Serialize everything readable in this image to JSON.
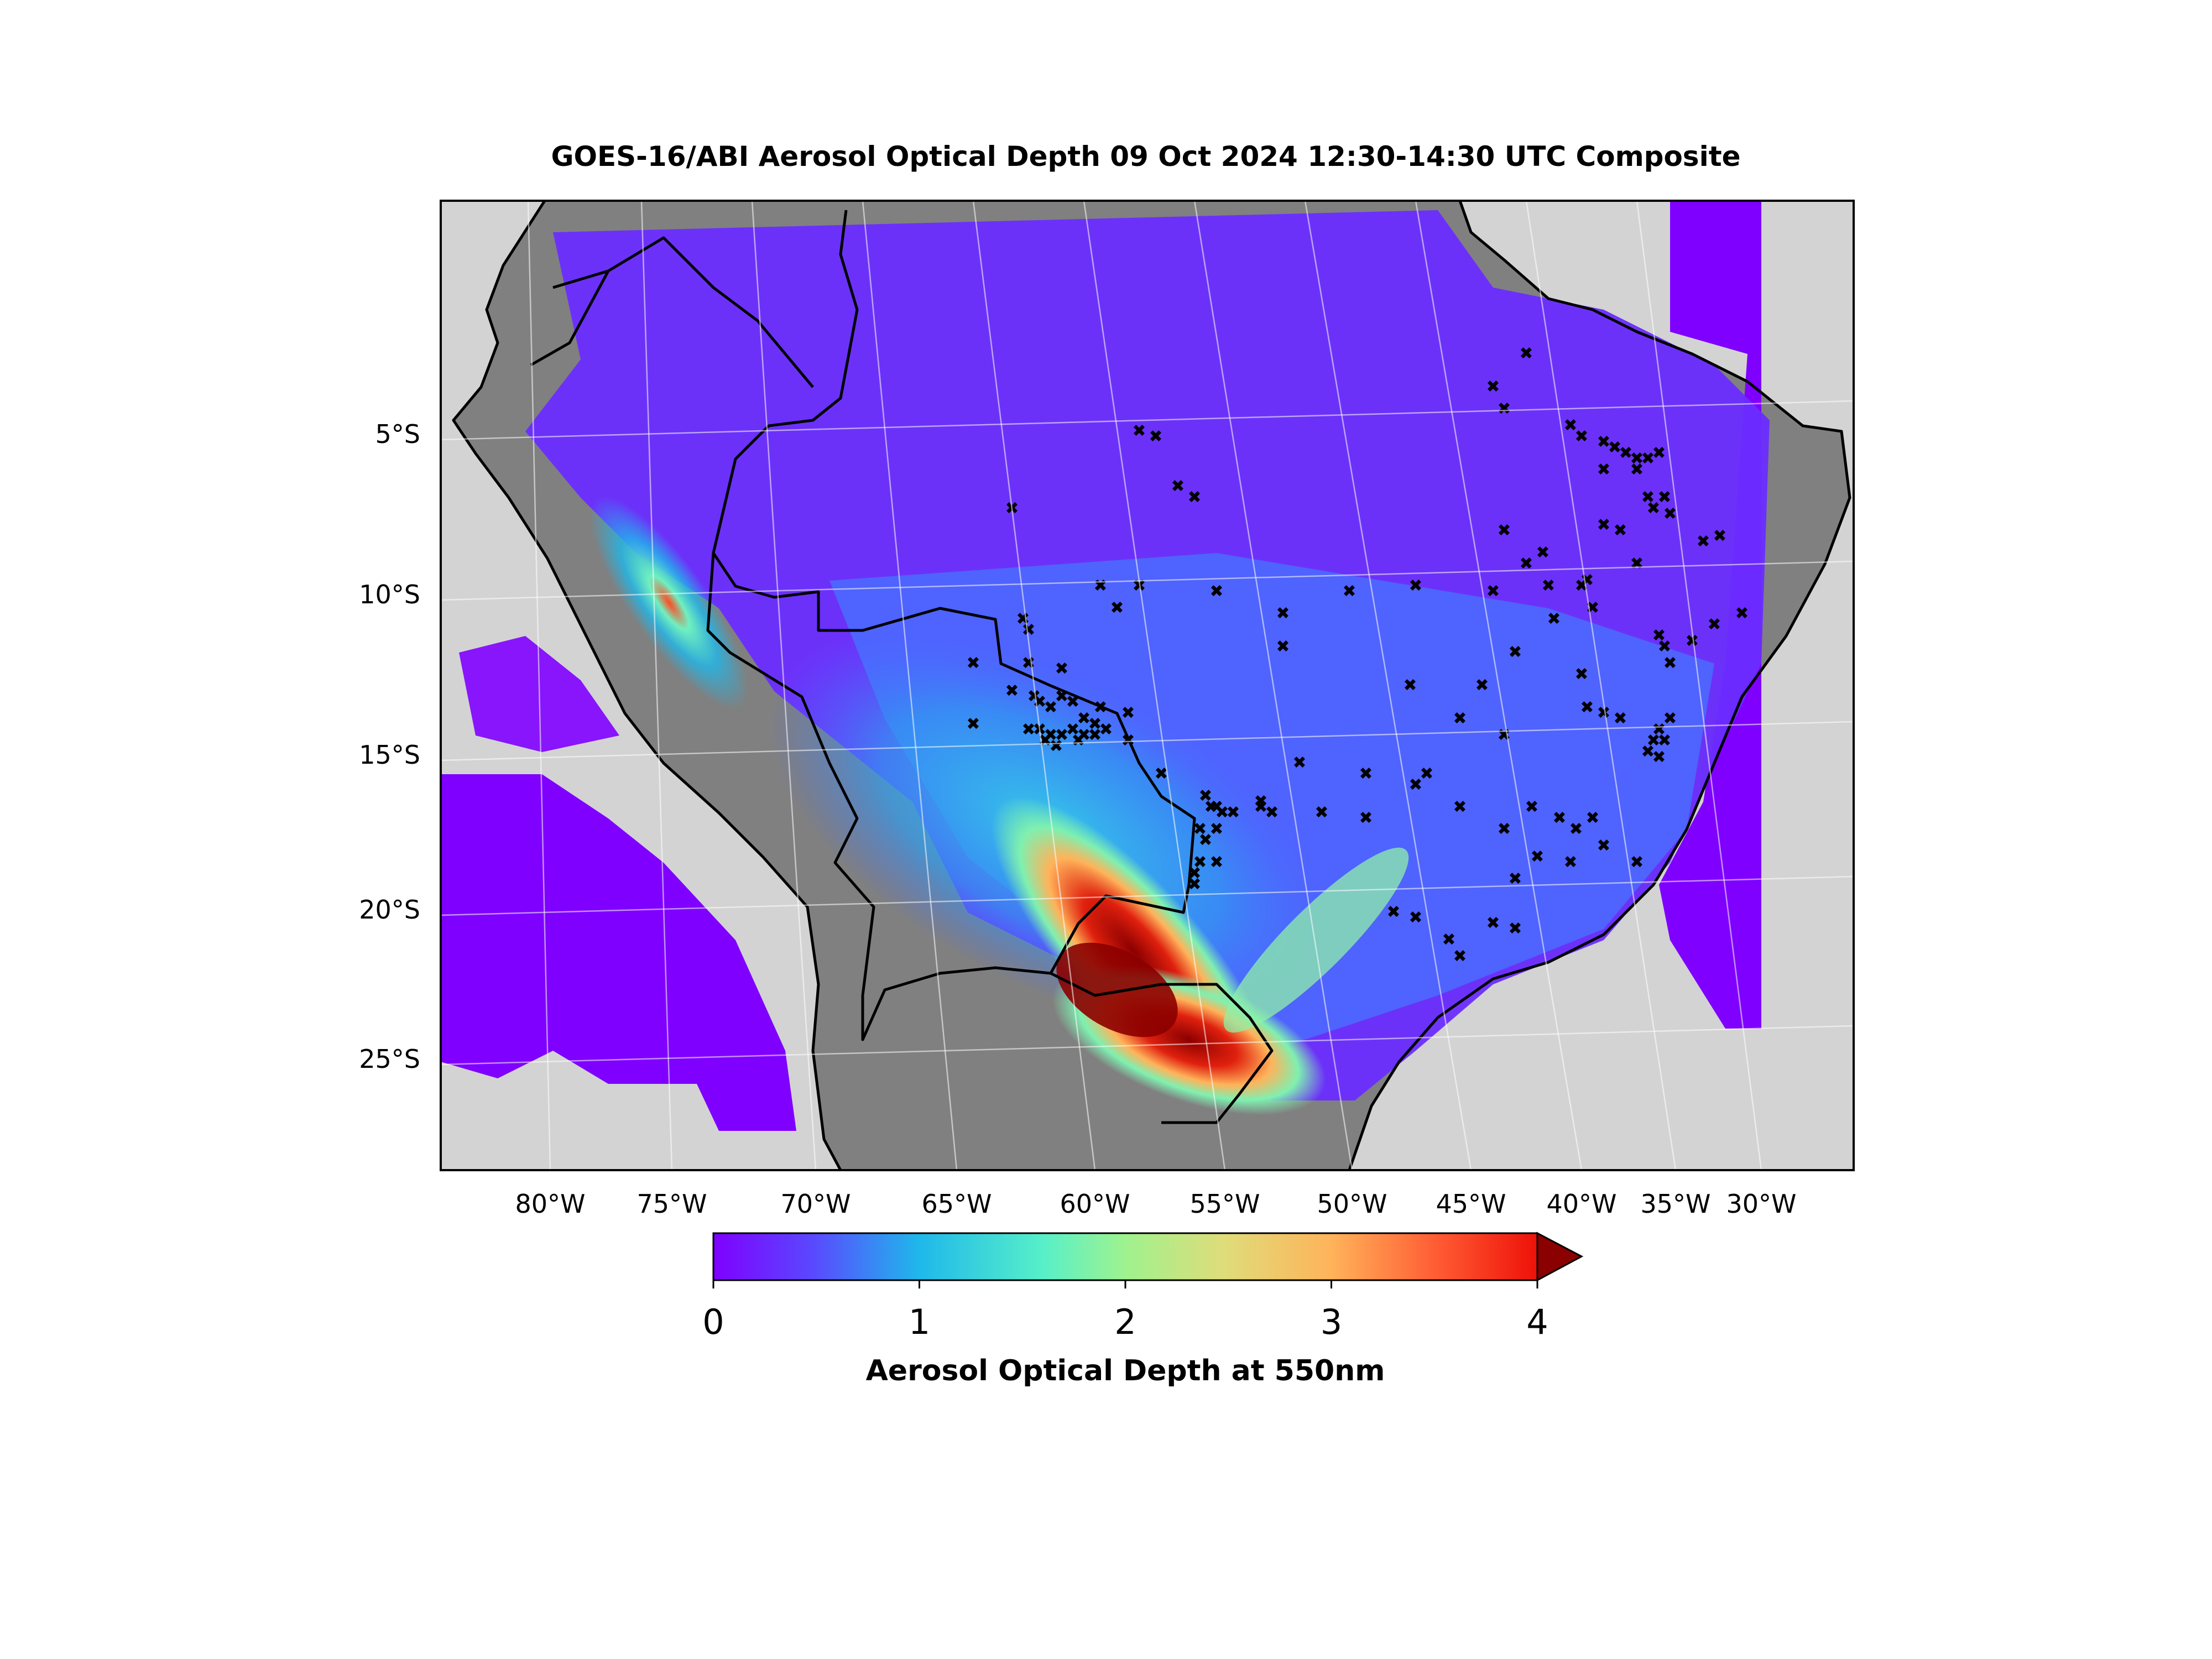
{
  "title": "GOES-16/ABI Aerosol Optical Depth  09 Oct 2024  12:30-14:30 UTC Composite",
  "map": {
    "lat_ticks": [
      {
        "label": "5°S",
        "lat": -5
      },
      {
        "label": "10°S",
        "lat": -10
      },
      {
        "label": "15°S",
        "lat": -15
      },
      {
        "label": "20°S",
        "lat": -20
      },
      {
        "label": "25°S",
        "lat": -25
      }
    ],
    "lon_ticks": [
      {
        "label": "80°W",
        "lon": -80
      },
      {
        "label": "75°W",
        "lon": -75
      },
      {
        "label": "70°W",
        "lon": -70
      },
      {
        "label": "65°W",
        "lon": -65
      },
      {
        "label": "60°W",
        "lon": -60
      },
      {
        "label": "55°W",
        "lon": -55
      },
      {
        "label": "50°W",
        "lon": -50
      },
      {
        "label": "45°W",
        "lon": -45
      },
      {
        "label": "40°W",
        "lon": -40
      },
      {
        "label": "35°W",
        "lon": -35
      },
      {
        "label": "30°W",
        "lon": -30
      }
    ],
    "colors": {
      "ocean": "#d3d3d3",
      "land": "#808080",
      "border": "#000000",
      "fire_marker": "#000000"
    }
  },
  "colorbar": {
    "label": "Aerosol Optical Depth at 550nm",
    "ticks": [
      "0",
      "1",
      "2",
      "3",
      "4"
    ],
    "range": [
      0,
      4
    ],
    "extend": "max",
    "colormap": [
      "#7f00ff",
      "#4b6cff",
      "#1fb8eb",
      "#57f0c8",
      "#a6f08a",
      "#f2c56a",
      "#ff6a3b",
      "#ff1a0d",
      "#8b0000"
    ]
  }
}
